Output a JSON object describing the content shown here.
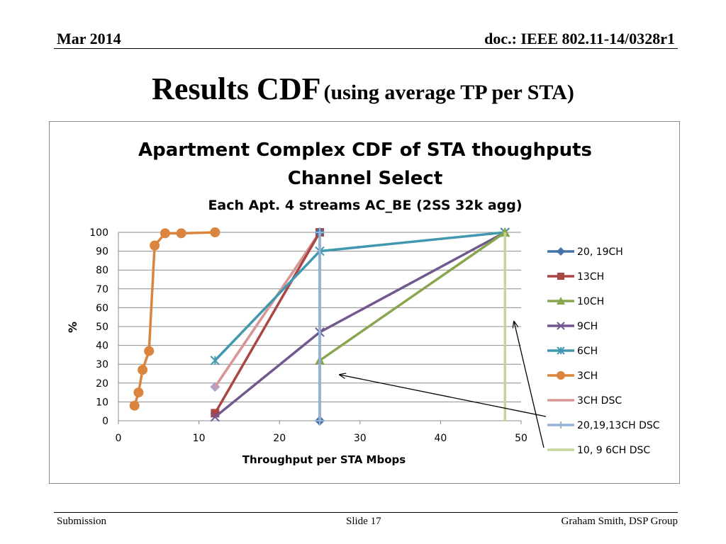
{
  "header": {
    "date": "Mar 2014",
    "doc": "doc.: IEEE 802.11-14/0328r1"
  },
  "slide": {
    "title": "Results CDF",
    "subtitle": "(using average TP per STA)"
  },
  "footer": {
    "left": "Submission",
    "center": "Slide 17",
    "right": "Graham Smith, DSP Group"
  },
  "chart_data": {
    "type": "line",
    "title": "Apartment Complex CDF of STA thoughputs",
    "subtitle": "Channel Select",
    "subtitle2": "Each Apt. 4 streams AC_BE (2SS 32k agg)",
    "xlabel": "Throughput per STA Mbops",
    "ylabel": "%",
    "xlim": [
      0,
      50
    ],
    "ylim": [
      0,
      100
    ],
    "xticks": [
      0,
      10,
      20,
      30,
      40,
      50
    ],
    "yticks": [
      0,
      10,
      20,
      30,
      40,
      50,
      60,
      70,
      80,
      90,
      100
    ],
    "grid": "horizontal",
    "legend_position": "right",
    "series": [
      {
        "name": "20, 19CH",
        "color": "#4572a7",
        "marker": "diamond",
        "points": [
          [
            25,
            0
          ],
          [
            25,
            100
          ]
        ]
      },
      {
        "name": "13CH",
        "color": "#aa4643",
        "marker": "square",
        "points": [
          [
            12,
            4
          ],
          [
            25,
            100
          ]
        ]
      },
      {
        "name": "10CH",
        "color": "#89a54e",
        "marker": "triangle",
        "points": [
          [
            25,
            32
          ],
          [
            48,
            100
          ]
        ]
      },
      {
        "name": "9CH",
        "color": "#71588f",
        "marker": "x",
        "points": [
          [
            12,
            2
          ],
          [
            25,
            47
          ],
          [
            48,
            100
          ]
        ]
      },
      {
        "name": "6CH",
        "color": "#4198af",
        "marker": "star",
        "points": [
          [
            12,
            32
          ],
          [
            25,
            90
          ],
          [
            48,
            100
          ]
        ]
      },
      {
        "name": "3CH",
        "color": "#db843d",
        "marker": "circle",
        "points": [
          [
            2,
            8
          ],
          [
            2.5,
            15
          ],
          [
            3,
            27
          ],
          [
            3.8,
            37
          ],
          [
            4.5,
            93
          ],
          [
            5.8,
            99.5
          ],
          [
            7.8,
            99.5
          ],
          [
            12,
            100
          ]
        ]
      },
      {
        "name": "3CH DSC",
        "color": "#d99694",
        "marker": "none",
        "points": [
          [
            12,
            18
          ],
          [
            25,
            100
          ]
        ]
      },
      {
        "name": "20,19,13CH DSC",
        "color": "#95b3d7",
        "marker": "plus",
        "points": [
          [
            25,
            0
          ],
          [
            25,
            100
          ]
        ]
      },
      {
        "name": "10, 9 6CH DSC",
        "color": "#c3d69b",
        "marker": "none",
        "points": [
          [
            48,
            0
          ],
          [
            48,
            100
          ]
        ]
      },
      {
        "name": "",
        "color": "#b2a2c7",
        "marker": "diamond",
        "points": [
          [
            12,
            18
          ],
          [
            25,
            100
          ]
        ]
      }
    ]
  }
}
